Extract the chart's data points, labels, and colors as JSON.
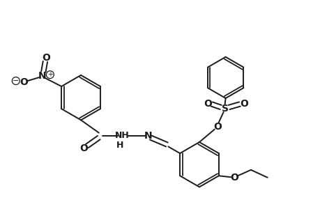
{
  "bg_color": "#ffffff",
  "line_color": "#1a1a1a",
  "line_width": 1.4,
  "figsize": [
    4.6,
    3.0
  ],
  "dpi": 100,
  "xlim": [
    0,
    9.2
  ],
  "ylim": [
    0,
    6.0
  ]
}
